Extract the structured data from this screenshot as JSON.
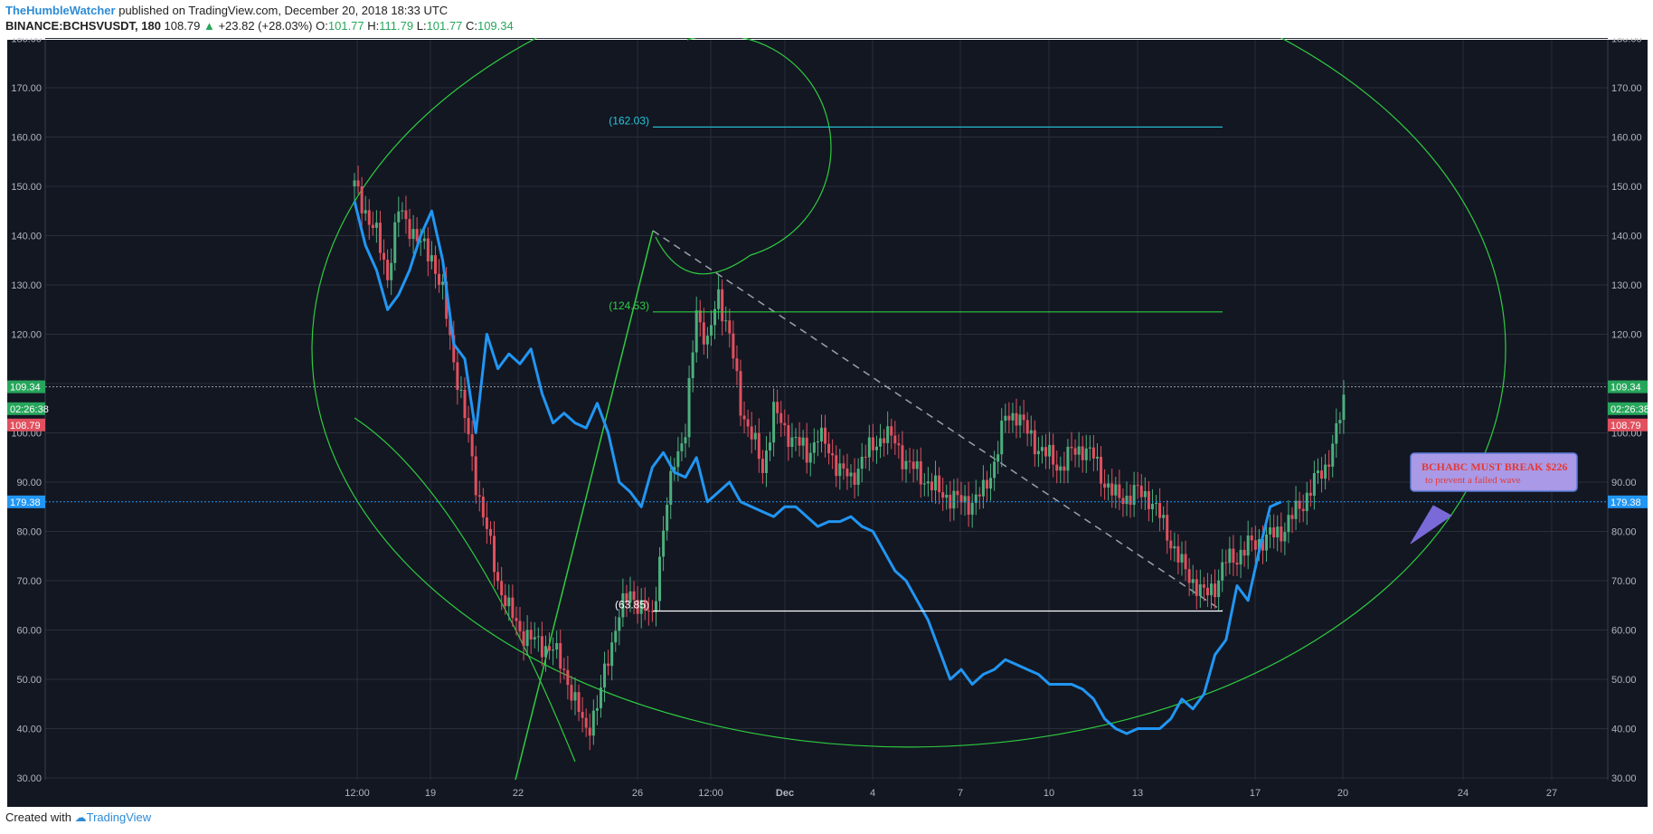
{
  "header": {
    "author": "TheHumbleWatcher",
    "published": "published on TradingView.com, December 20, 2018 18:33 UTC",
    "symbol": "BINANCE:BCHSVUSDT, 180",
    "last": "108.79",
    "change": "+23.82 (+28.03%)",
    "o_label": "O:",
    "o": "101.77",
    "h_label": "H:",
    "h": "111.79",
    "l_label": "L:",
    "l": "101.77",
    "c_label": "C:",
    "c": "109.34"
  },
  "footer": {
    "created_with": "Created with",
    "brand": "TradingView"
  },
  "colors": {
    "background": "#131722",
    "grid": "#2a2e39",
    "up": "#4caf7d",
    "down": "#e0505f",
    "overlay_line": "#2196f3",
    "fib_arc": "#2ecc40",
    "level_cyan": "#26c6da",
    "level_green": "#2ecc40",
    "level_white": "#ffffff"
  },
  "chart_data": {
    "type": "candlestick",
    "ylim": [
      30,
      180
    ],
    "y_ticks": [
      "30.00",
      "40.00",
      "50.00",
      "60.00",
      "70.00",
      "80.00",
      "90.00",
      "100.00",
      "110.00",
      "120.00",
      "130.00",
      "140.00",
      "150.00",
      "160.00",
      "170.00",
      "180.00"
    ],
    "x_ticks": [
      "12:00",
      "19",
      "22",
      "26",
      "12:00",
      "Dec",
      "4",
      "7",
      "10",
      "13",
      "17",
      "20",
      "24",
      "27"
    ],
    "price_badges": [
      {
        "label": "109.34",
        "value": 109.34,
        "color": "#26a65b"
      },
      {
        "label": "02:26:38",
        "value": 104.9,
        "color": "#26a65b"
      },
      {
        "label": "108.79",
        "value": 101.6,
        "color": "#e0505f"
      },
      {
        "label": "179.38",
        "value": 86.0,
        "color": "#2196f3"
      }
    ],
    "levels": [
      {
        "label": "(162.03)",
        "value": 162.03,
        "color": "#26c6da"
      },
      {
        "label": "(124.53)",
        "value": 124.53,
        "color": "#2ecc40"
      },
      {
        "label": "(63.85)",
        "value": 63.85,
        "color": "#ffffff"
      }
    ],
    "annotation": {
      "line1": "BCHABC MUST BREAK $226",
      "line2": "to prevent a failed wave"
    },
    "close_path": [
      [
        0,
        150
      ],
      [
        2,
        140
      ],
      [
        3,
        132
      ],
      [
        4,
        145
      ],
      [
        5,
        142
      ],
      [
        6,
        138
      ],
      [
        7,
        136
      ],
      [
        8,
        128
      ],
      [
        9,
        115
      ],
      [
        10,
        103
      ],
      [
        11,
        90
      ],
      [
        12,
        80
      ],
      [
        13,
        70
      ],
      [
        14,
        64
      ],
      [
        15,
        60
      ],
      [
        16,
        58
      ],
      [
        17,
        57
      ],
      [
        18,
        56
      ],
      [
        19,
        52
      ],
      [
        20,
        45
      ],
      [
        21,
        40
      ],
      [
        22,
        44
      ],
      [
        23,
        55
      ],
      [
        24,
        63
      ],
      [
        25,
        68
      ],
      [
        26,
        64
      ],
      [
        27,
        63
      ],
      [
        28,
        80
      ],
      [
        29,
        95
      ],
      [
        30,
        100
      ],
      [
        31,
        125
      ],
      [
        32,
        118
      ],
      [
        33,
        128
      ],
      [
        34,
        120
      ],
      [
        35,
        105
      ],
      [
        36,
        100
      ],
      [
        37,
        92
      ],
      [
        38,
        105
      ],
      [
        39,
        100
      ],
      [
        40,
        99
      ],
      [
        41,
        95
      ],
      [
        42,
        100
      ],
      [
        43,
        96
      ],
      [
        44,
        93
      ],
      [
        45,
        90
      ],
      [
        46,
        95
      ],
      [
        47,
        97
      ],
      [
        48,
        100
      ],
      [
        49,
        98
      ],
      [
        50,
        94
      ],
      [
        51,
        92
      ],
      [
        52,
        90
      ],
      [
        53,
        88
      ],
      [
        54,
        87
      ],
      [
        55,
        86
      ],
      [
        56,
        86
      ],
      [
        57,
        88
      ],
      [
        58,
        94
      ],
      [
        59,
        103
      ],
      [
        60,
        104
      ],
      [
        61,
        100
      ],
      [
        62,
        97
      ],
      [
        63,
        95
      ],
      [
        64,
        93
      ],
      [
        65,
        96
      ],
      [
        66,
        97
      ],
      [
        67,
        95
      ],
      [
        68,
        90
      ],
      [
        69,
        87
      ],
      [
        70,
        87
      ],
      [
        71,
        88
      ],
      [
        72,
        87
      ],
      [
        73,
        83
      ],
      [
        74,
        78
      ],
      [
        75,
        73
      ],
      [
        76,
        70
      ],
      [
        77,
        67
      ],
      [
        78,
        69
      ],
      [
        79,
        74
      ],
      [
        80,
        75
      ],
      [
        81,
        77
      ],
      [
        82,
        78
      ],
      [
        83,
        79
      ],
      [
        84,
        80
      ],
      [
        85,
        83
      ],
      [
        86,
        86
      ],
      [
        87,
        90
      ],
      [
        88,
        93
      ],
      [
        89,
        100
      ],
      [
        90,
        109.34
      ]
    ],
    "overlay_path": [
      [
        0,
        147
      ],
      [
        1,
        138
      ],
      [
        2,
        133
      ],
      [
        3,
        125
      ],
      [
        4,
        128
      ],
      [
        5,
        133
      ],
      [
        6,
        140
      ],
      [
        7,
        145
      ],
      [
        8,
        135
      ],
      [
        9,
        118
      ],
      [
        10,
        115
      ],
      [
        11,
        100
      ],
      [
        12,
        120
      ],
      [
        13,
        113
      ],
      [
        14,
        116
      ],
      [
        15,
        114
      ],
      [
        16,
        117
      ],
      [
        17,
        108
      ],
      [
        18,
        102
      ],
      [
        19,
        104
      ],
      [
        20,
        102
      ],
      [
        21,
        101
      ],
      [
        22,
        106
      ],
      [
        23,
        100
      ],
      [
        24,
        90
      ],
      [
        25,
        88
      ],
      [
        26,
        85
      ],
      [
        27,
        93
      ],
      [
        28,
        96
      ],
      [
        29,
        92
      ],
      [
        30,
        91
      ],
      [
        31,
        95
      ],
      [
        32,
        86
      ],
      [
        33,
        88
      ],
      [
        34,
        90
      ],
      [
        35,
        86
      ],
      [
        36,
        85
      ],
      [
        37,
        84
      ],
      [
        38,
        83
      ],
      [
        39,
        85
      ],
      [
        40,
        85
      ],
      [
        41,
        83
      ],
      [
        42,
        81
      ],
      [
        43,
        82
      ],
      [
        44,
        82
      ],
      [
        45,
        83
      ],
      [
        46,
        81
      ],
      [
        47,
        80
      ],
      [
        48,
        76
      ],
      [
        49,
        72
      ],
      [
        50,
        70
      ],
      [
        51,
        66
      ],
      [
        52,
        62
      ],
      [
        53,
        56
      ],
      [
        54,
        50
      ],
      [
        55,
        52
      ],
      [
        56,
        49
      ],
      [
        57,
        51
      ],
      [
        58,
        52
      ],
      [
        59,
        54
      ],
      [
        60,
        53
      ],
      [
        61,
        52
      ],
      [
        62,
        51
      ],
      [
        63,
        49
      ],
      [
        64,
        49
      ],
      [
        65,
        49
      ],
      [
        66,
        48
      ],
      [
        67,
        46
      ],
      [
        68,
        42
      ],
      [
        69,
        40
      ],
      [
        70,
        39
      ],
      [
        71,
        40
      ],
      [
        72,
        40
      ],
      [
        73,
        40
      ],
      [
        74,
        42
      ],
      [
        75,
        46
      ],
      [
        76,
        44
      ],
      [
        77,
        47
      ],
      [
        78,
        55
      ],
      [
        79,
        58
      ],
      [
        80,
        69
      ],
      [
        81,
        66
      ],
      [
        82,
        76
      ],
      [
        83,
        85
      ],
      [
        84,
        86
      ]
    ]
  }
}
